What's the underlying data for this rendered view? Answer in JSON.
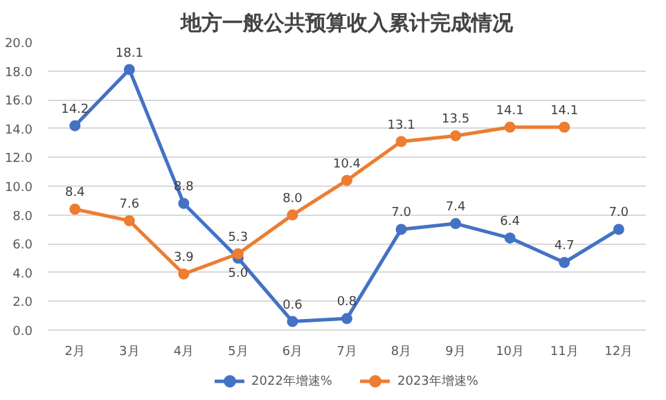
{
  "chart_data": {
    "type": "line",
    "title": "地方一般公共预算收入累计完成情况",
    "categories": [
      "2月",
      "3月",
      "4月",
      "5月",
      "6月",
      "7月",
      "8月",
      "9月",
      "10月",
      "11月",
      "12月"
    ],
    "series": [
      {
        "name": "2022年增速%",
        "color": "#4472c4",
        "values": [
          14.2,
          18.1,
          8.8,
          5.0,
          0.6,
          0.8,
          7.0,
          7.4,
          6.4,
          4.7,
          7.0
        ],
        "value_labels": [
          "14.2",
          "18.1",
          "8.8",
          "5.0",
          "0.6",
          "0.8",
          "7.0",
          "7.4",
          "6.4",
          "4.7",
          "7.0"
        ]
      },
      {
        "name": "2023年增速%",
        "color": "#ed7d31",
        "values": [
          8.4,
          7.6,
          3.9,
          5.3,
          8.0,
          10.4,
          13.1,
          13.5,
          14.1,
          14.1,
          null
        ],
        "value_labels": [
          "8.4",
          "7.6",
          "3.9",
          "5.3",
          "8.0",
          "10.4",
          "13.1",
          "13.5",
          "14.1",
          "14.1",
          null
        ]
      }
    ],
    "ylim": [
      0,
      20
    ],
    "yticks": [
      {
        "value": 0,
        "label": "0.0"
      },
      {
        "value": 2,
        "label": "2.0"
      },
      {
        "value": 4,
        "label": "4.0"
      },
      {
        "value": 6,
        "label": "6.0"
      },
      {
        "value": 8,
        "label": "8.0"
      },
      {
        "value": 10,
        "label": "10.0"
      },
      {
        "value": 12,
        "label": "12.0"
      },
      {
        "value": 14,
        "label": "14.0"
      },
      {
        "value": 16,
        "label": "16.0"
      },
      {
        "value": 18,
        "label": "18.0"
      },
      {
        "value": 20,
        "label": "20.0"
      }
    ],
    "grid": "y",
    "legend": "bottom",
    "marker": "circle",
    "line_style": "solid"
  }
}
